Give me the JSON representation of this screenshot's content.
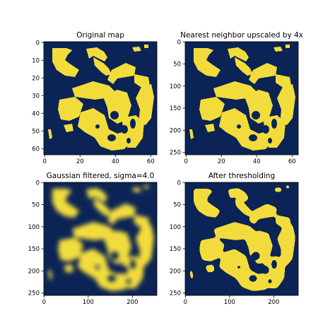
{
  "colors": {
    "background": "#0b2455",
    "foreground": "#f2dc3c",
    "blurred_edge": "#6f8a7a"
  },
  "chart_data": [
    {
      "type": "heatmap",
      "title": "Original map",
      "x_ticks": [
        "0",
        "20",
        "40",
        "60"
      ],
      "y_ticks": [
        "0",
        "10",
        "20",
        "30",
        "40",
        "50",
        "60"
      ],
      "xlim": [
        -0.5,
        63.5
      ],
      "ylim": [
        63.5,
        -0.5
      ],
      "colormap": "blue-to-yellow",
      "values": "binary 0/1 map",
      "grid": false
    },
    {
      "type": "heatmap",
      "title": "Nearest neighbor upscaled by 4x",
      "x_ticks": [
        "0",
        "20",
        "40",
        "60"
      ],
      "y_ticks": [
        "0",
        "50",
        "100",
        "150",
        "200",
        "250"
      ],
      "xlim": [
        -0.5,
        63.5
      ],
      "ylim": [
        255.5,
        -0.5
      ],
      "colormap": "blue-to-yellow",
      "values": "binary 0/1 map",
      "grid": false
    },
    {
      "type": "heatmap",
      "title": "Gaussian filtered, sigma=4.0",
      "x_ticks": [
        "0",
        "100",
        "200"
      ],
      "y_ticks": [
        "0",
        "50",
        "100",
        "150",
        "200",
        "250"
      ],
      "xlim": [
        -0.5,
        255.5
      ],
      "ylim": [
        255.5,
        -0.5
      ],
      "colormap": "blue-to-yellow",
      "values": "continuous 0-1",
      "grid": false
    },
    {
      "type": "heatmap",
      "title": "After thresholding",
      "x_ticks": [
        "0",
        "100",
        "200"
      ],
      "y_ticks": [
        "0",
        "50",
        "100",
        "150",
        "200",
        "250"
      ],
      "xlim": [
        -0.5,
        255.5
      ],
      "ylim": [
        255.5,
        -0.5
      ],
      "colormap": "blue-to-yellow",
      "values": "binary 0/1 map",
      "grid": false
    }
  ]
}
